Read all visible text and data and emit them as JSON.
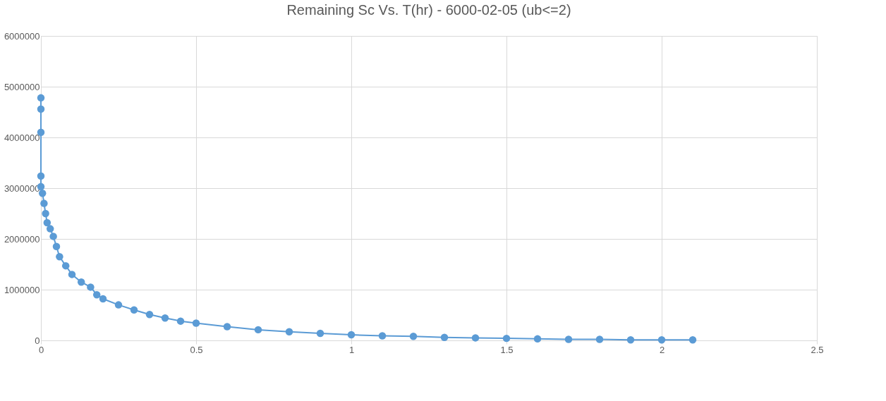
{
  "chart_data": {
    "type": "line",
    "title": "Remaining Sc Vs. T(hr) - 6000-02-05 (ub<=2)",
    "series": [
      {
        "color": "#5b9bd5",
        "x": [
          0,
          0,
          0,
          0,
          0,
          0.005,
          0.01,
          0.015,
          0.02,
          0.03,
          0.04,
          0.05,
          0.06,
          0.08,
          0.1,
          0.13,
          0.16,
          0.18,
          0.2,
          0.25,
          0.3,
          0.35,
          0.4,
          0.45,
          0.5,
          0.6,
          0.7,
          0.8,
          0.9,
          1.0,
          1.1,
          1.2,
          1.3,
          1.4,
          1.5,
          1.6,
          1.7,
          1.8,
          1.9,
          2.0,
          2.1
        ],
        "values": [
          4780000,
          4560000,
          4100000,
          3240000,
          3030000,
          2900000,
          2700000,
          2500000,
          2320000,
          2200000,
          2050000,
          1850000,
          1650000,
          1470000,
          1300000,
          1150000,
          1050000,
          900000,
          820000,
          700000,
          600000,
          510000,
          440000,
          380000,
          340000,
          270000,
          210000,
          170000,
          140000,
          110000,
          90000,
          80000,
          60000,
          50000,
          40000,
          30000,
          20000,
          20000,
          10000,
          10000,
          10000
        ]
      }
    ],
    "xlim": [
      0,
      2.5
    ],
    "xticks": [
      0,
      0.5,
      1,
      1.5,
      2,
      2.5
    ],
    "ylim": [
      0,
      6000000
    ],
    "yticks": [
      0,
      1000000,
      2000000,
      3000000,
      4000000,
      5000000,
      6000000
    ],
    "grid": true,
    "marker": "circle",
    "line_style": "solid"
  }
}
